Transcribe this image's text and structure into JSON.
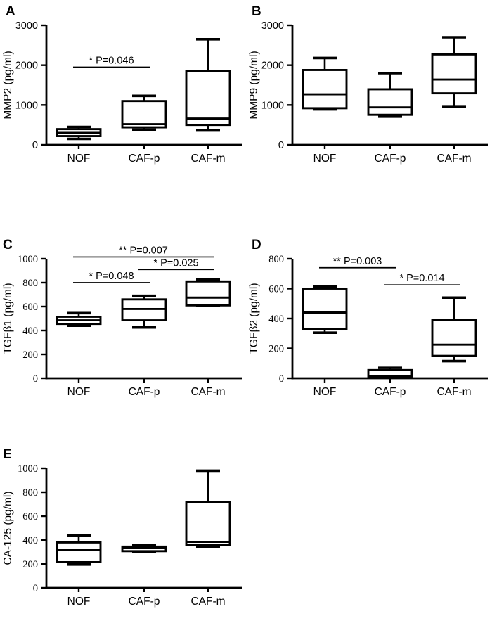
{
  "figure_color": "#000000",
  "background_color": "#ffffff",
  "group_labels": [
    "NOF",
    "CAF-p",
    "CAF-m"
  ],
  "chart_data": [
    {
      "panel": "A",
      "type": "box",
      "ylabel": "MMP2 (pg/ml)",
      "ylim": [
        0,
        3000
      ],
      "yticks": [
        0,
        1000,
        2000,
        3000
      ],
      "categories": [
        "NOF",
        "CAF-p",
        "CAF-m"
      ],
      "boxes": [
        {
          "category": "NOF",
          "min": 150,
          "q1": 220,
          "median": 300,
          "q3": 395,
          "max": 450
        },
        {
          "category": "CAF-p",
          "min": 380,
          "q1": 440,
          "median": 520,
          "q3": 1100,
          "max": 1230
        },
        {
          "category": "CAF-m",
          "min": 360,
          "q1": 500,
          "median": 660,
          "q3": 1850,
          "max": 2650
        }
      ],
      "significance": [
        {
          "groups": [
            "NOF",
            "CAF-p"
          ],
          "label": "* P=0.046",
          "y": 1950
        }
      ]
    },
    {
      "panel": "B",
      "type": "box",
      "ylabel": "MMP9 (pg/ml)",
      "ylim": [
        0,
        3000
      ],
      "yticks": [
        0,
        1000,
        2000,
        3000
      ],
      "categories": [
        "NOF",
        "CAF-p",
        "CAF-m"
      ],
      "boxes": [
        {
          "category": "NOF",
          "min": 890,
          "q1": 920,
          "median": 1270,
          "q3": 1880,
          "max": 2180
        },
        {
          "category": "CAF-p",
          "min": 710,
          "q1": 755,
          "median": 940,
          "q3": 1395,
          "max": 1800
        },
        {
          "category": "CAF-m",
          "min": 950,
          "q1": 1295,
          "median": 1640,
          "q3": 2270,
          "max": 2700
        }
      ],
      "significance": []
    },
    {
      "panel": "C",
      "type": "box",
      "ylabel": "TGFβ1 (pg/ml)",
      "ylim": [
        0,
        1000
      ],
      "yticks": [
        0,
        200,
        400,
        600,
        800,
        1000
      ],
      "categories": [
        "NOF",
        "CAF-p",
        "CAF-m"
      ],
      "boxes": [
        {
          "category": "NOF",
          "min": 440,
          "q1": 455,
          "median": 485,
          "q3": 515,
          "max": 545
        },
        {
          "category": "CAF-p",
          "min": 425,
          "q1": 485,
          "median": 580,
          "q3": 660,
          "max": 690
        },
        {
          "category": "CAF-m",
          "min": 605,
          "q1": 610,
          "median": 675,
          "q3": 810,
          "max": 825
        }
      ],
      "significance": [
        {
          "groups": [
            "NOF",
            "CAF-m"
          ],
          "label": "** P=0.007",
          "y": 1015
        },
        {
          "groups": [
            "CAF-p",
            "CAF-m"
          ],
          "label": "* P=0.025",
          "y": 910
        },
        {
          "groups": [
            "NOF",
            "CAF-p"
          ],
          "label": "* P=0.048",
          "y": 800
        }
      ]
    },
    {
      "panel": "D",
      "type": "box",
      "ylabel": "TGFβ2 (pg/ml)",
      "ylim": [
        0,
        800
      ],
      "yticks": [
        0,
        200,
        400,
        600,
        800
      ],
      "categories": [
        "NOF",
        "CAF-p",
        "CAF-m"
      ],
      "boxes": [
        {
          "category": "NOF",
          "min": 305,
          "q1": 330,
          "median": 440,
          "q3": 600,
          "max": 615
        },
        {
          "category": "CAF-p",
          "min": 5,
          "q1": 10,
          "median": 15,
          "q3": 55,
          "max": 70
        },
        {
          "category": "CAF-m",
          "min": 115,
          "q1": 150,
          "median": 225,
          "q3": 390,
          "max": 540
        }
      ],
      "significance": [
        {
          "groups": [
            "NOF",
            "CAF-p"
          ],
          "label": "** P=0.003",
          "y": 740
        },
        {
          "groups": [
            "CAF-p",
            "CAF-m"
          ],
          "label": "* P=0.014",
          "y": 625
        }
      ]
    },
    {
      "panel": "E",
      "type": "box",
      "ylabel": "CA-125 (pg/ml)",
      "ylim": [
        0,
        1000
      ],
      "yticks": [
        0,
        200,
        400,
        600,
        800,
        1000
      ],
      "categories": [
        "NOF",
        "CAF-p",
        "CAF-m"
      ],
      "boxes": [
        {
          "category": "NOF",
          "min": 195,
          "q1": 215,
          "median": 315,
          "q3": 380,
          "max": 440
        },
        {
          "category": "CAF-p",
          "min": 300,
          "q1": 307,
          "median": 332,
          "q3": 345,
          "max": 355
        },
        {
          "category": "CAF-m",
          "min": 345,
          "q1": 360,
          "median": 385,
          "q3": 715,
          "max": 980
        }
      ],
      "significance": []
    }
  ]
}
